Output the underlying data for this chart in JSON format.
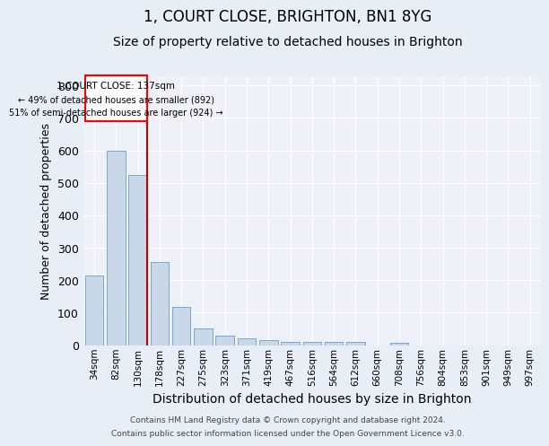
{
  "title_line1": "1, COURT CLOSE, BRIGHTON, BN1 8YG",
  "title_line2": "Size of property relative to detached houses in Brighton",
  "xlabel": "Distribution of detached houses by size in Brighton",
  "ylabel": "Number of detached properties",
  "categories": [
    "34sqm",
    "82sqm",
    "130sqm",
    "178sqm",
    "227sqm",
    "275sqm",
    "323sqm",
    "371sqm",
    "419sqm",
    "467sqm",
    "516sqm",
    "564sqm",
    "612sqm",
    "660sqm",
    "708sqm",
    "756sqm",
    "804sqm",
    "853sqm",
    "901sqm",
    "949sqm",
    "997sqm"
  ],
  "values": [
    215,
    600,
    525,
    255,
    118,
    52,
    30,
    20,
    15,
    10,
    10,
    10,
    10,
    0,
    8,
    0,
    0,
    0,
    0,
    0,
    0
  ],
  "bar_color": "#c8d8e8",
  "bar_edge_color": "#7aa8c8",
  "highlight_bar_index": 2,
  "highlight_line_color": "#c00000",
  "annotation_line1": "1 COURT CLOSE: 137sqm",
  "annotation_line2": "← 49% of detached houses are smaller (892)",
  "annotation_line3": "51% of semi-detached houses are larger (924) →",
  "ylim": [
    0,
    830
  ],
  "background_color": "#e8eef5",
  "plot_background_color": "#eef2f8",
  "footer_line1": "Contains HM Land Registry data © Crown copyright and database right 2024.",
  "footer_line2": "Contains public sector information licensed under the Open Government Licence v3.0.",
  "grid_color": "#ffffff",
  "tick_label_fontsize": 7.5,
  "title_fontsize1": 12,
  "title_fontsize2": 10,
  "ylabel_fontsize": 9,
  "xlabel_fontsize": 10
}
